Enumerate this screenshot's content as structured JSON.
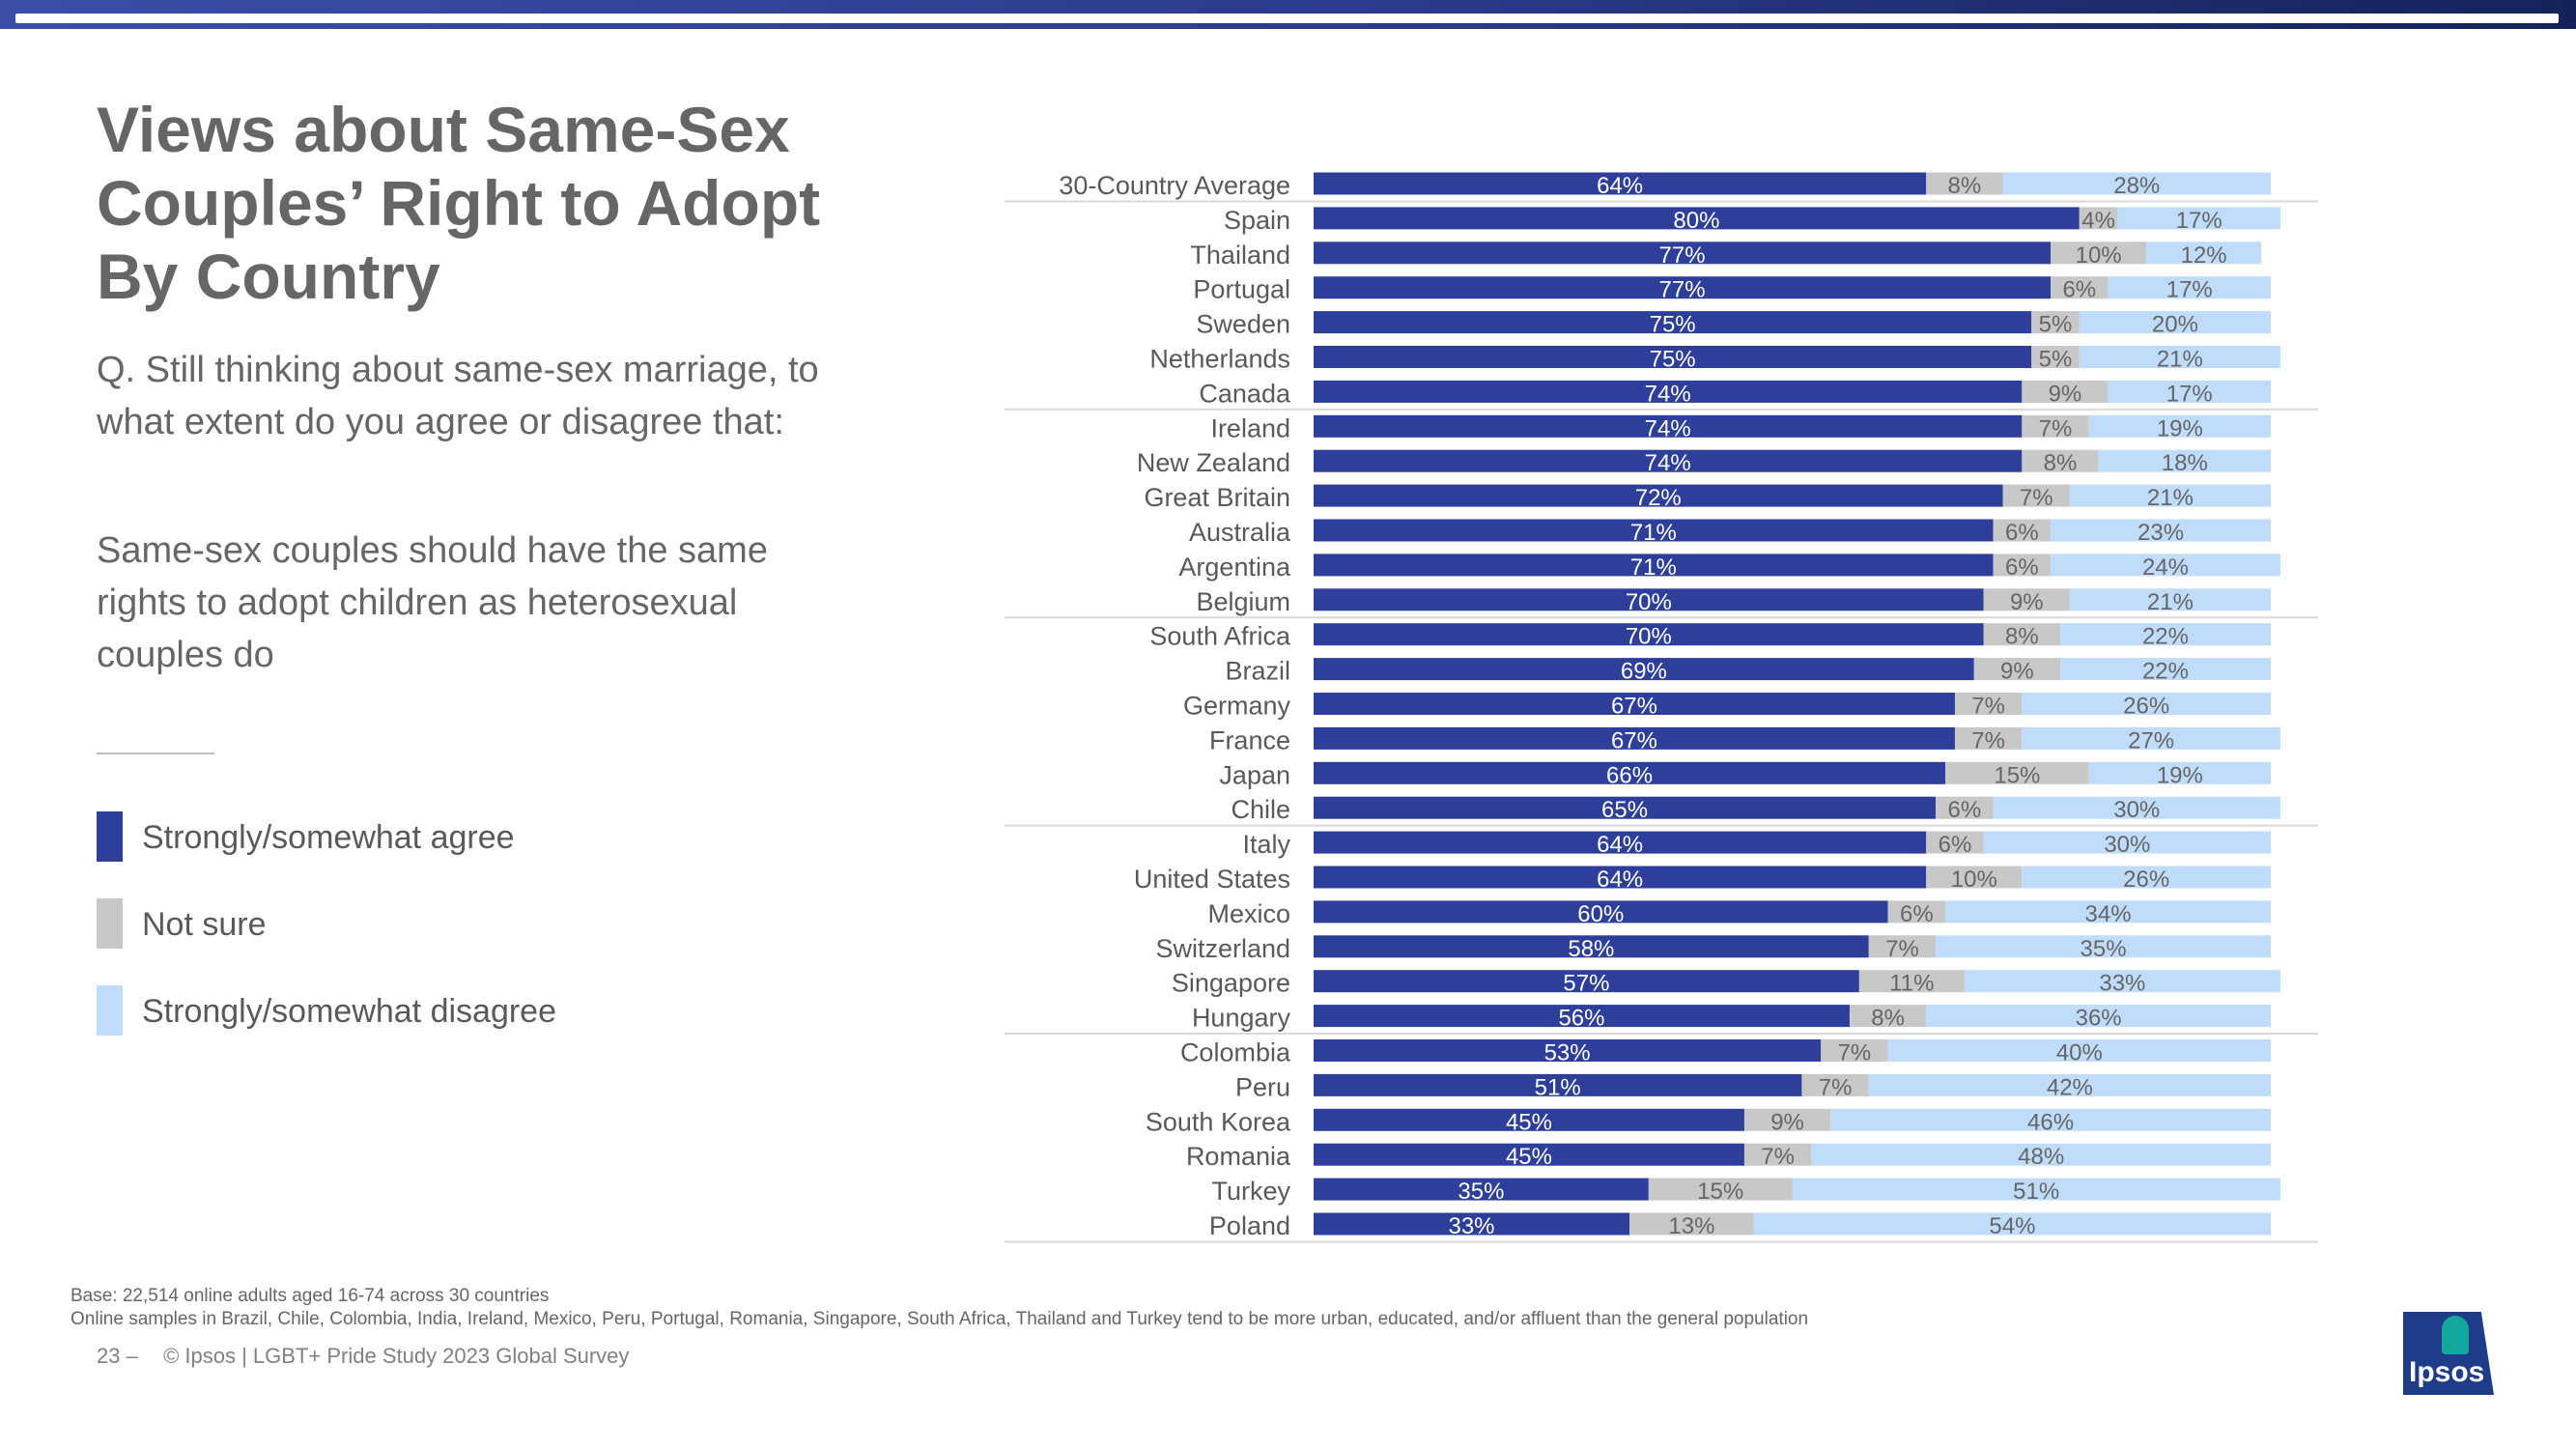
{
  "header": {
    "accent_color": "#2b3a8a"
  },
  "title": "Views about Same-Sex Couples’ Right to Adopt By Country",
  "question": "Q. Still thinking about same-sex marriage, to what extent do you agree or disagree that:",
  "statement": "Same-sex couples should have the same rights to adopt children as heterosexual couples do",
  "legend": [
    {
      "label": "Strongly/somewhat agree",
      "color": "#2e3f9b"
    },
    {
      "label": "Not sure",
      "color": "#c8c8c8"
    },
    {
      "label": "Strongly/somewhat disagree",
      "color": "#bfdcfb"
    }
  ],
  "chart_data": {
    "type": "bar",
    "orientation": "horizontal",
    "stacked": true,
    "xlim": [
      0,
      100
    ],
    "categories": [
      "30-Country Average",
      "Spain",
      "Thailand",
      "Portugal",
      "Sweden",
      "Netherlands",
      "Canada",
      "Ireland",
      "New Zealand",
      "Great Britain",
      "Australia",
      "Argentina",
      "Belgium",
      "South Africa",
      "Brazil",
      "Germany",
      "France",
      "Japan",
      "Chile",
      "Italy",
      "United States",
      "Mexico",
      "Switzerland",
      "Singapore",
      "Hungary",
      "Colombia",
      "Peru",
      "South Korea",
      "Romania",
      "Turkey",
      "Poland"
    ],
    "series": [
      {
        "name": "Strongly/somewhat agree",
        "color": "#2e3f9b",
        "label_color": "#ffffff",
        "values": [
          64,
          80,
          77,
          77,
          75,
          75,
          74,
          74,
          74,
          72,
          71,
          71,
          70,
          70,
          69,
          67,
          67,
          66,
          65,
          64,
          64,
          60,
          58,
          57,
          56,
          53,
          51,
          45,
          45,
          35,
          33
        ]
      },
      {
        "name": "Not sure",
        "color": "#c8c8c8",
        "label_color": "#666666",
        "values": [
          8,
          4,
          10,
          6,
          5,
          5,
          9,
          7,
          8,
          7,
          6,
          6,
          9,
          8,
          9,
          7,
          7,
          15,
          6,
          6,
          10,
          6,
          7,
          11,
          8,
          7,
          7,
          9,
          7,
          15,
          13
        ]
      },
      {
        "name": "Strongly/somewhat disagree",
        "color": "#bfdcfb",
        "label_color": "#666666",
        "values": [
          28,
          17,
          12,
          17,
          20,
          21,
          17,
          19,
          18,
          21,
          23,
          24,
          21,
          22,
          22,
          26,
          27,
          19,
          30,
          30,
          26,
          34,
          35,
          33,
          36,
          40,
          42,
          46,
          48,
          51,
          54
        ]
      }
    ],
    "data_labels": [
      [
        "64%",
        "80%",
        "77%",
        "77%",
        "75%",
        "75%",
        "74%",
        "74%",
        "74%",
        "72%",
        "71%",
        "71%",
        "70%",
        "70%",
        "69%",
        "67%",
        "67%",
        "66%",
        "65%",
        "64%",
        "64%",
        "60%",
        "58%",
        "57%",
        "56%",
        "53%",
        "51%",
        "45%",
        "45%",
        "35%",
        "33%"
      ],
      [
        "8%",
        "4%",
        "10%",
        "6%",
        "5%",
        "5%",
        "9%",
        "7%",
        "8%",
        "7%",
        "6%",
        "6%",
        "9%",
        "8%",
        "9%",
        "7%",
        "7%",
        "15%",
        "6%",
        "6%",
        "10%",
        "6%",
        "7%",
        "11%",
        "8%",
        "7%",
        "7%",
        "9%",
        "7%",
        "15%",
        "13%"
      ],
      [
        "28%",
        "17%",
        "12%",
        "17%",
        "20%",
        "21%",
        "17%",
        "19%",
        "18%",
        "21%",
        "23%",
        "24%",
        "21%",
        "22%",
        "22%",
        "26%",
        "27%",
        "19%",
        "30%",
        "30%",
        "26%",
        "34%",
        "35%",
        "33%",
        "36%",
        "40%",
        "42%",
        "46%",
        "48%",
        "51%",
        "54%"
      ]
    ],
    "group_separators_after": [
      0,
      6,
      12,
      18,
      24,
      30
    ]
  },
  "footnotes": {
    "base": "Base: 22,514 online adults aged 16-74 across 30 countries",
    "samples": "Online samples in Brazil, Chile, Colombia, India, Ireland, Mexico, Peru, Portugal, Romania, Singapore, South Africa, Thailand and Turkey tend to be more urban, educated, and/or affluent than the general population"
  },
  "footer": {
    "page": "23 –",
    "copyright": "© Ipsos | LGBT+ Pride Study 2023 Global Survey"
  },
  "logo": {
    "text": "Ipsos",
    "color": "#1f3c88",
    "mark_color": "#12a89d"
  }
}
